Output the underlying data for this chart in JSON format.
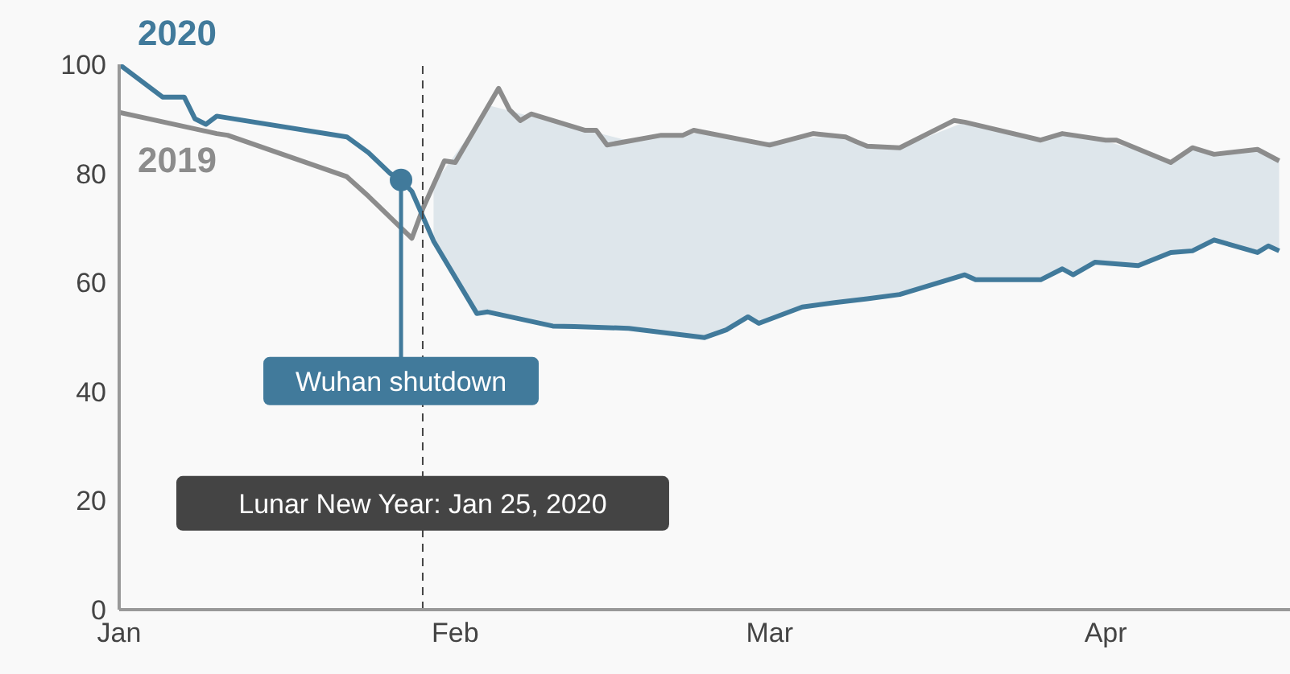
{
  "chart_data": {
    "type": "line",
    "legend": false,
    "grid": false,
    "marker": "none",
    "line_style": "solid",
    "xlim": [
      "2020-01-01",
      "2020-04-18"
    ],
    "xticks": [
      {
        "value": "2020-01-01",
        "label": "Jan"
      },
      {
        "value": "2020-02-01",
        "label": "Feb"
      },
      {
        "value": "2020-03-01",
        "label": "Mar"
      },
      {
        "value": "2020-04-01",
        "label": "Apr"
      }
    ],
    "ylim": [
      0,
      100
    ],
    "yticks": [
      0,
      20,
      40,
      60,
      80,
      100
    ],
    "series": [
      {
        "name": "2019",
        "color": "#8c8c8c",
        "x": [
          "2020-01-01",
          "2020-01-10",
          "2020-01-11",
          "2020-01-22",
          "2020-01-24",
          "2020-01-28",
          "2020-01-29",
          "2020-01-31",
          "2020-02-01",
          "2020-02-05",
          "2020-02-06",
          "2020-02-07",
          "2020-02-08",
          "2020-02-13",
          "2020-02-14",
          "2020-02-15",
          "2020-02-20",
          "2020-02-22",
          "2020-02-23",
          "2020-03-01",
          "2020-03-05",
          "2020-03-08",
          "2020-03-09",
          "2020-03-10",
          "2020-03-13",
          "2020-03-18",
          "2020-03-19",
          "2020-03-26",
          "2020-03-28",
          "2020-04-01",
          "2020-04-02",
          "2020-04-07",
          "2020-04-09",
          "2020-04-11",
          "2020-04-15",
          "2020-04-17"
        ],
        "values": [
          91.2,
          87.3,
          87,
          79.4,
          75.8,
          68.1,
          73.5,
          82.3,
          82,
          95.6,
          91.7,
          89.7,
          90.9,
          87.9,
          87.9,
          85.2,
          87,
          87,
          87.9,
          85.2,
          87.3,
          86.7,
          85.8,
          85,
          84.7,
          89.7,
          89.4,
          86.1,
          87.3,
          86.1,
          86.1,
          82,
          84.7,
          83.5,
          84.4,
          82.3
        ]
      },
      {
        "name": "2020",
        "color": "#417a9b",
        "x": [
          "2020-01-01",
          "2020-01-05",
          "2020-01-07",
          "2020-01-08",
          "2020-01-09",
          "2020-01-10",
          "2020-01-22",
          "2020-01-24",
          "2020-01-26",
          "2020-01-27",
          "2020-01-28",
          "2020-01-30",
          "2020-02-03",
          "2020-02-04",
          "2020-02-10",
          "2020-02-12",
          "2020-02-17",
          "2020-02-24",
          "2020-02-26",
          "2020-02-28",
          "2020-02-29",
          "2020-03-04",
          "2020-03-07",
          "2020-03-10",
          "2020-03-13",
          "2020-03-19",
          "2020-03-20",
          "2020-03-26",
          "2020-03-28",
          "2020-03-29",
          "2020-03-31",
          "2020-04-04",
          "2020-04-07",
          "2020-04-09",
          "2020-04-11",
          "2020-04-15",
          "2020-04-16",
          "2020-04-17"
        ],
        "values": [
          100,
          94,
          94,
          90,
          89,
          90.5,
          86.7,
          83.8,
          80,
          78.8,
          76.7,
          67.6,
          54.3,
          54.6,
          52,
          51.9,
          51.6,
          49.9,
          51.3,
          53.7,
          52.5,
          55.5,
          56.3,
          57,
          57.8,
          61.4,
          60.5,
          60.5,
          62.5,
          61.4,
          63.7,
          63.1,
          65.5,
          65.8,
          67.8,
          65.5,
          66.7,
          65.8
        ],
        "lower": [
          null,
          null,
          null,
          null,
          null,
          null,
          null,
          null,
          null,
          null,
          null,
          67.6,
          54.3,
          54.6,
          52,
          51.9,
          51.6,
          49.9,
          51.3,
          53.7,
          52.5,
          55.5,
          56.3,
          57,
          57.8,
          61.4,
          60.5,
          60.5,
          62.5,
          61.4,
          63.7,
          63.1,
          65.5,
          65.8,
          67.8,
          65.5,
          66.7,
          65.8
        ],
        "upper": [
          null,
          null,
          null,
          null,
          null,
          null,
          null,
          null,
          null,
          null,
          null,
          78,
          89,
          92.5,
          89.4,
          88.5,
          86,
          87.5,
          86.6,
          86,
          85.6,
          86.5,
          86.8,
          85,
          84.7,
          89.4,
          89,
          86.1,
          87.3,
          87,
          86.4,
          84.3,
          82,
          84.7,
          83.5,
          84.4,
          83.4,
          82.3
        ]
      }
    ],
    "ref_lines": [
      {
        "axis": "x",
        "value": "2020-01-29",
        "label": "Lunar New Year: Jan 25, 2020",
        "color": "#444444",
        "line_style": "dashed"
      }
    ],
    "annotations": [
      {
        "text": "Wuhan shutdown",
        "x": "2020-01-27",
        "y": 78.8
      }
    ]
  }
}
